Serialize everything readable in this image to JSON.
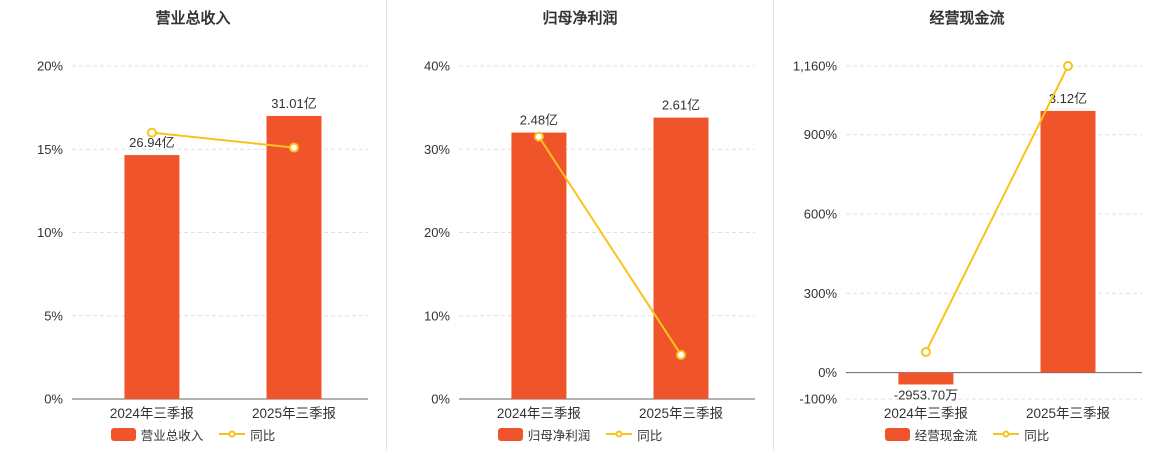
{
  "colors": {
    "bar": "#f0542b",
    "line": "#f8c31c",
    "grid": "#e0e0e0",
    "axis": "#666666",
    "text": "#333333"
  },
  "chart_data": [
    {
      "type": "bar",
      "title": "营业总收入",
      "categories": [
        "2024年三季报",
        "2025年三季报"
      ],
      "bar_series": {
        "name": "营业总收入",
        "labels": [
          "26.94亿",
          "31.01亿"
        ],
        "axis_values": [
          14.65,
          17.0
        ]
      },
      "line_series": {
        "name": "同比",
        "values": [
          16.0,
          15.1
        ]
      },
      "ylim": [
        0,
        20
      ],
      "yticks": [
        {
          "v": 0,
          "label": "0%"
        },
        {
          "v": 5,
          "label": "5%"
        },
        {
          "v": 10,
          "label": "10%"
        },
        {
          "v": 15,
          "label": "15%"
        },
        {
          "v": 20,
          "label": "20%"
        }
      ],
      "legend": [
        "营业总收入",
        "同比"
      ],
      "legend_position": "bottom"
    },
    {
      "type": "bar",
      "title": "归母净利润",
      "categories": [
        "2024年三季报",
        "2025年三季报"
      ],
      "bar_series": {
        "name": "归母净利润",
        "labels": [
          "2.48亿",
          "2.61亿"
        ],
        "axis_values": [
          32.0,
          33.8
        ]
      },
      "line_series": {
        "name": "同比",
        "values": [
          31.5,
          5.3
        ]
      },
      "ylim": [
        0,
        40
      ],
      "yticks": [
        {
          "v": 0,
          "label": "0%"
        },
        {
          "v": 10,
          "label": "10%"
        },
        {
          "v": 20,
          "label": "20%"
        },
        {
          "v": 30,
          "label": "30%"
        },
        {
          "v": 40,
          "label": "40%"
        }
      ],
      "legend": [
        "归母净利润",
        "同比"
      ],
      "legend_position": "bottom"
    },
    {
      "type": "bar",
      "title": "经营现金流",
      "categories": [
        "2024年三季报",
        "2025年三季报"
      ],
      "bar_series": {
        "name": "经营现金流",
        "labels": [
          "-2953.70万",
          "3.12亿"
        ],
        "axis_values": [
          -45,
          990
        ]
      },
      "line_series": {
        "name": "同比",
        "values": [
          78,
          1160
        ]
      },
      "ylim": [
        -100,
        1160
      ],
      "yticks": [
        {
          "v": -100,
          "label": "-100%"
        },
        {
          "v": 0,
          "label": "0%"
        },
        {
          "v": 300,
          "label": "300%"
        },
        {
          "v": 600,
          "label": "600%"
        },
        {
          "v": 900,
          "label": "900%"
        },
        {
          "v": 1160,
          "label": "1,160%"
        }
      ],
      "legend": [
        "经营现金流",
        "同比"
      ],
      "legend_position": "bottom"
    }
  ]
}
